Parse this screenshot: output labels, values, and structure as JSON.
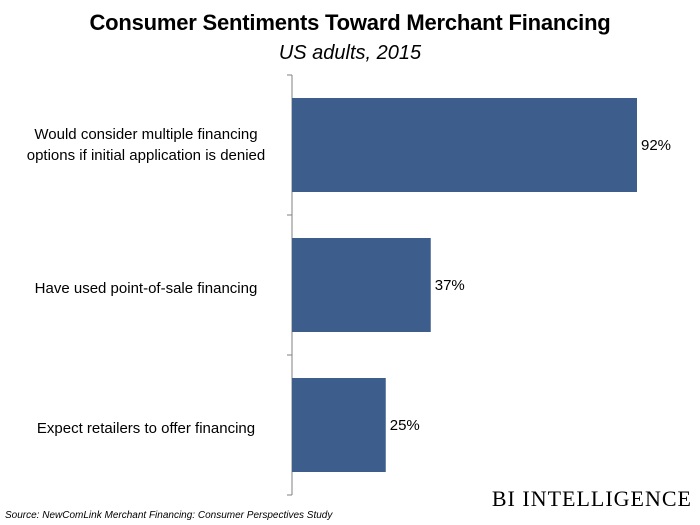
{
  "chart_data": {
    "type": "bar",
    "orientation": "horizontal",
    "title": "Consumer Sentiments Toward Merchant Financing",
    "subtitle": "US adults, 2015",
    "categories": [
      "Would consider multiple financing options if initial application is denied",
      "Have used point-of-sale financing",
      "Expect retailers to offer financing"
    ],
    "values": [
      92,
      37,
      25
    ],
    "value_labels": [
      "92%",
      "37%",
      "25%"
    ],
    "xlim": [
      0,
      100
    ],
    "grid": false,
    "bar_color": "#3d5e8c"
  },
  "labels": {
    "cat0": "Would consider multiple financing options if initial application is denied",
    "cat1": "Have used point-of-sale financing",
    "cat2": "Expect retailers to offer financing"
  },
  "source": "Source: NewComLink Merchant Financing: Consumer Perspectives Study",
  "brand": "BI INTELLIGENCE"
}
